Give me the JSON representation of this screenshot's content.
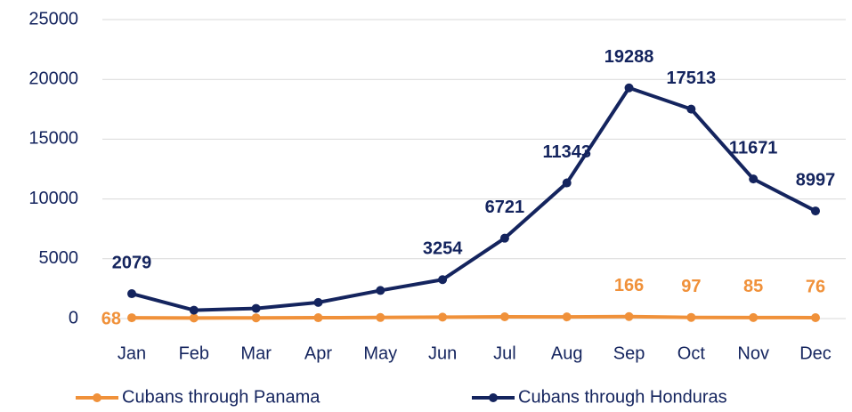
{
  "chart_data": {
    "type": "line",
    "categories": [
      "Jan",
      "Feb",
      "Mar",
      "Apr",
      "May",
      "Jun",
      "Jul",
      "Aug",
      "Sep",
      "Oct",
      "Nov",
      "Dec"
    ],
    "series": [
      {
        "name": "Cubans through Panama",
        "color": "#f0913a",
        "values": [
          68,
          50,
          60,
          70,
          90,
          120,
          150,
          140,
          166,
          97,
          85,
          76
        ],
        "value_labels": [
          "68",
          null,
          null,
          null,
          null,
          null,
          null,
          null,
          "166",
          "97",
          "85",
          "76"
        ]
      },
      {
        "name": "Cubans through Honduras",
        "color": "#14245e",
        "values": [
          2079,
          700,
          850,
          1350,
          2350,
          3254,
          6721,
          11343,
          19288,
          17513,
          11671,
          8997
        ],
        "value_labels": [
          "2079",
          null,
          null,
          null,
          null,
          "3254",
          "6721",
          "11343",
          "19288",
          "17513",
          "11671",
          "8997"
        ]
      }
    ],
    "ylim": [
      0,
      25000
    ],
    "yticks": [
      0,
      5000,
      10000,
      15000,
      20000,
      25000
    ],
    "grid": true,
    "legend": "bottom"
  }
}
